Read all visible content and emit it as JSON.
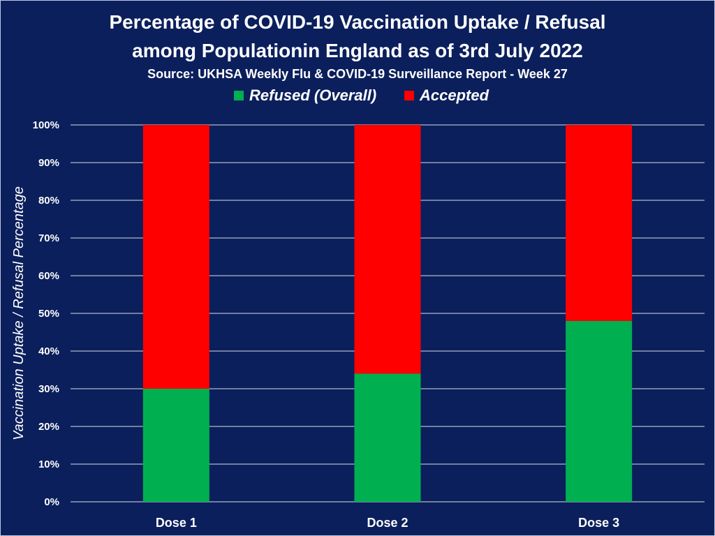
{
  "chart_data": {
    "type": "bar",
    "stacked": true,
    "title_line1": "Percentage of COVID-19 Vaccination Uptake / Refusal",
    "title_line2": "among Populationin England as of 3rd July 2022",
    "subtitle": "Source: UKHSA Weekly Flu & COVID-19 Surveillance Report - Week 27",
    "xlabel": "",
    "ylabel": "Vaccination Uptake / Refusal Percentage",
    "categories": [
      "Dose 1",
      "Dose 2",
      "Dose 3"
    ],
    "series": [
      {
        "name": "Refused (Overall)",
        "color": "#00b050",
        "values": [
          30,
          34,
          48
        ]
      },
      {
        "name": "Accepted",
        "color": "#ff0000",
        "values": [
          70,
          66,
          52
        ]
      }
    ],
    "ylim": [
      0,
      100
    ],
    "yticks": [
      0,
      10,
      20,
      30,
      40,
      50,
      60,
      70,
      80,
      90,
      100
    ],
    "ytick_labels": [
      "0%",
      "10%",
      "20%",
      "30%",
      "40%",
      "50%",
      "60%",
      "70%",
      "80%",
      "90%",
      "100%"
    ],
    "grid": true,
    "legend_position": "top-center",
    "colors": {
      "background": "#0b1f5c",
      "gridline": "#ffffff",
      "text": "#ffffff"
    }
  }
}
